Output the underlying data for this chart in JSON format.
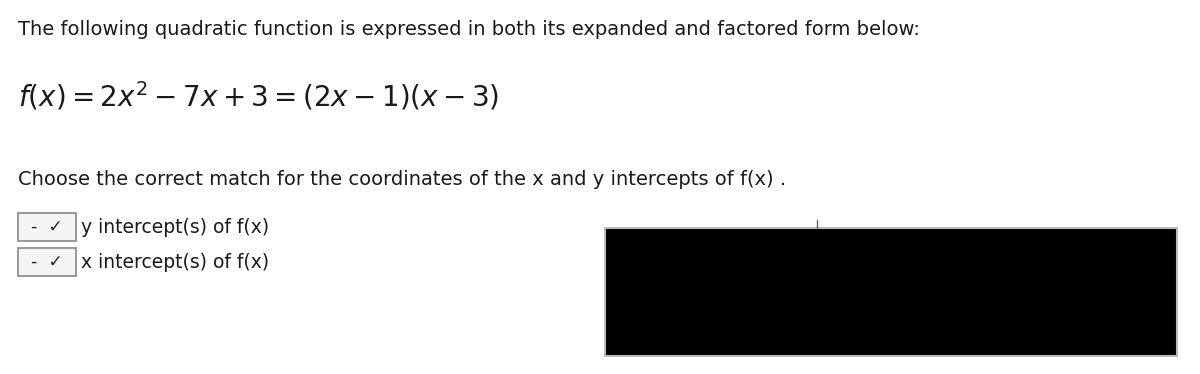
{
  "background_color": "#ffffff",
  "line1": "The following quadratic function is expressed in both its expanded and factored form below:",
  "line1_fontsize": 14.0,
  "line1_color": "#1a1a1a",
  "formula_fontsize": 20,
  "formula_color": "#1a1a1a",
  "line3": "Choose the correct match for the coordinates of the x and y intercepts of f(x) .",
  "line3_fontsize": 14.0,
  "line3_color": "#1a1a1a",
  "dropdown1_label": "y intercept(s) of f(x)",
  "dropdown2_label": "x intercept(s) of f(x)",
  "dropdown_fontsize": 13.5,
  "dropdown_box_color": "#f5f5f5",
  "dropdown_border_color": "#888888",
  "black_box_color": "#000000",
  "black_box_border_color": "#cccccc"
}
